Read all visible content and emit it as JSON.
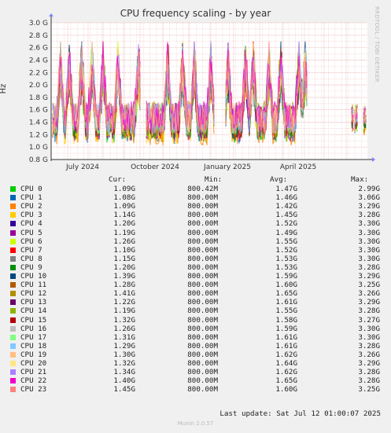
{
  "chart_data": {
    "type": "line",
    "title": "CPU frequency scaling - by year",
    "ylabel": "Hz",
    "ylim": [
      0.8,
      3.0
    ],
    "y_ticks": [
      "0.8 G",
      "1.0 G",
      "1.2 G",
      "1.4 G",
      "1.6 G",
      "1.8 G",
      "2.0 G",
      "2.2 G",
      "2.4 G",
      "2.6 G",
      "2.8 G",
      "3.0 G"
    ],
    "x_ticks": [
      "July 2024",
      "October 2024",
      "January 2025",
      "April 2025"
    ],
    "series_summary": [
      {
        "name": "CPU 0",
        "color": "#00cc00",
        "cur": "1.09G",
        "min": "800.42M",
        "avg": "1.47G",
        "max": "2.99G"
      },
      {
        "name": "CPU 1",
        "color": "#0066b3",
        "cur": "1.08G",
        "min": "800.00M",
        "avg": "1.46G",
        "max": "3.06G"
      },
      {
        "name": "CPU 2",
        "color": "#ff8000",
        "cur": "1.09G",
        "min": "800.00M",
        "avg": "1.42G",
        "max": "3.29G"
      },
      {
        "name": "CPU 3",
        "color": "#ffcc00",
        "cur": "1.14G",
        "min": "800.00M",
        "avg": "1.45G",
        "max": "3.28G"
      },
      {
        "name": "CPU 4",
        "color": "#330099",
        "cur": "1.20G",
        "min": "800.00M",
        "avg": "1.52G",
        "max": "3.30G"
      },
      {
        "name": "CPU 5",
        "color": "#990099",
        "cur": "1.19G",
        "min": "800.00M",
        "avg": "1.49G",
        "max": "3.30G"
      },
      {
        "name": "CPU 6",
        "color": "#ccff00",
        "cur": "1.26G",
        "min": "800.00M",
        "avg": "1.55G",
        "max": "3.30G"
      },
      {
        "name": "CPU 7",
        "color": "#ff0000",
        "cur": "1.10G",
        "min": "800.00M",
        "avg": "1.52G",
        "max": "3.30G"
      },
      {
        "name": "CPU 8",
        "color": "#808080",
        "cur": "1.15G",
        "min": "800.00M",
        "avg": "1.53G",
        "max": "3.30G"
      },
      {
        "name": "CPU 9",
        "color": "#008f00",
        "cur": "1.20G",
        "min": "800.00M",
        "avg": "1.53G",
        "max": "3.28G"
      },
      {
        "name": "CPU 10",
        "color": "#00487d",
        "cur": "1.39G",
        "min": "800.00M",
        "avg": "1.59G",
        "max": "3.29G"
      },
      {
        "name": "CPU 11",
        "color": "#b35a00",
        "cur": "1.28G",
        "min": "800.00M",
        "avg": "1.60G",
        "max": "3.25G"
      },
      {
        "name": "CPU 12",
        "color": "#b38f00",
        "cur": "1.41G",
        "min": "800.00M",
        "avg": "1.65G",
        "max": "3.26G"
      },
      {
        "name": "CPU 13",
        "color": "#6b006b",
        "cur": "1.22G",
        "min": "800.00M",
        "avg": "1.61G",
        "max": "3.29G"
      },
      {
        "name": "CPU 14",
        "color": "#8fb300",
        "cur": "1.19G",
        "min": "800.00M",
        "avg": "1.55G",
        "max": "3.28G"
      },
      {
        "name": "CPU 15",
        "color": "#b30000",
        "cur": "1.32G",
        "min": "800.00M",
        "avg": "1.58G",
        "max": "3.27G"
      },
      {
        "name": "CPU 16",
        "color": "#bebebe",
        "cur": "1.26G",
        "min": "800.00M",
        "avg": "1.59G",
        "max": "3.30G"
      },
      {
        "name": "CPU 17",
        "color": "#80ff80",
        "cur": "1.31G",
        "min": "800.00M",
        "avg": "1.61G",
        "max": "3.30G"
      },
      {
        "name": "CPU 18",
        "color": "#80c9ff",
        "cur": "1.29G",
        "min": "800.00M",
        "avg": "1.61G",
        "max": "3.28G"
      },
      {
        "name": "CPU 19",
        "color": "#ffc080",
        "cur": "1.30G",
        "min": "800.00M",
        "avg": "1.62G",
        "max": "3.26G"
      },
      {
        "name": "CPU 20",
        "color": "#ffe680",
        "cur": "1.32G",
        "min": "800.00M",
        "avg": "1.64G",
        "max": "3.29G"
      },
      {
        "name": "CPU 21",
        "color": "#aa80ff",
        "cur": "1.34G",
        "min": "800.00M",
        "avg": "1.62G",
        "max": "3.28G"
      },
      {
        "name": "CPU 22",
        "color": "#ee00cc",
        "cur": "1.40G",
        "min": "800.00M",
        "avg": "1.65G",
        "max": "3.28G"
      },
      {
        "name": "CPU 23",
        "color": "#ff8080",
        "cur": "1.45G",
        "min": "800.00M",
        "avg": "1.60G",
        "max": "3.25G"
      }
    ],
    "grid": true,
    "legend_placement": "bottom"
  },
  "legend_headers": {
    "cur": "Cur:",
    "min": "Min:",
    "avg": "Avg:",
    "max": "Max:"
  },
  "last_update": "Last update: Sat Jul 12 01:00:07 2025",
  "footer": "Munin 2.0.57",
  "watermark": "RRDTOOL / TOBI OETIKER"
}
